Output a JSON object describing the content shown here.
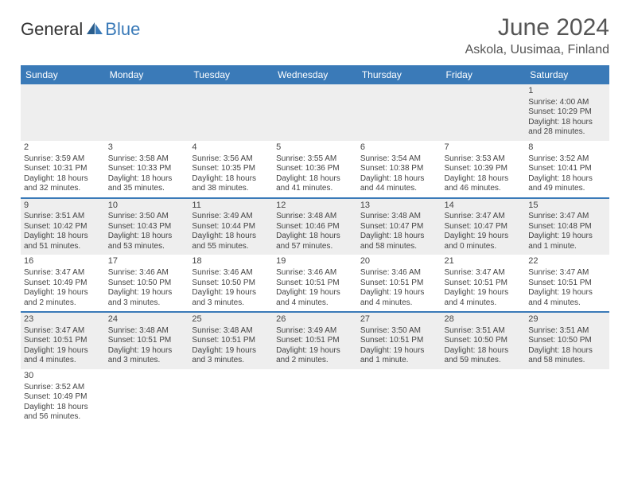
{
  "brand": {
    "part1": "General",
    "part2": "Blue"
  },
  "title": "June 2024",
  "location": "Askola, Uusimaa, Finland",
  "styling": {
    "header_bg": "#3a7ab8",
    "header_text_color": "#ffffff",
    "odd_row_bg": "#eeeeee",
    "even_row_bg": "#ffffff",
    "row_border_color": "#3a7ab8",
    "body_text_color": "#444444",
    "title_color": "#555555",
    "title_fontsize": 30,
    "location_fontsize": 16,
    "daynum_fontsize": 11,
    "cell_fontsize": 10,
    "header_fontsize": 12
  },
  "weekdays": [
    "Sunday",
    "Monday",
    "Tuesday",
    "Wednesday",
    "Thursday",
    "Friday",
    "Saturday"
  ],
  "weeks": [
    [
      null,
      null,
      null,
      null,
      null,
      null,
      {
        "n": "1",
        "sr": "Sunrise: 4:00 AM",
        "ss": "Sunset: 10:29 PM",
        "dl": "Daylight: 18 hours and 28 minutes."
      }
    ],
    [
      {
        "n": "2",
        "sr": "Sunrise: 3:59 AM",
        "ss": "Sunset: 10:31 PM",
        "dl": "Daylight: 18 hours and 32 minutes."
      },
      {
        "n": "3",
        "sr": "Sunrise: 3:58 AM",
        "ss": "Sunset: 10:33 PM",
        "dl": "Daylight: 18 hours and 35 minutes."
      },
      {
        "n": "4",
        "sr": "Sunrise: 3:56 AM",
        "ss": "Sunset: 10:35 PM",
        "dl": "Daylight: 18 hours and 38 minutes."
      },
      {
        "n": "5",
        "sr": "Sunrise: 3:55 AM",
        "ss": "Sunset: 10:36 PM",
        "dl": "Daylight: 18 hours and 41 minutes."
      },
      {
        "n": "6",
        "sr": "Sunrise: 3:54 AM",
        "ss": "Sunset: 10:38 PM",
        "dl": "Daylight: 18 hours and 44 minutes."
      },
      {
        "n": "7",
        "sr": "Sunrise: 3:53 AM",
        "ss": "Sunset: 10:39 PM",
        "dl": "Daylight: 18 hours and 46 minutes."
      },
      {
        "n": "8",
        "sr": "Sunrise: 3:52 AM",
        "ss": "Sunset: 10:41 PM",
        "dl": "Daylight: 18 hours and 49 minutes."
      }
    ],
    [
      {
        "n": "9",
        "sr": "Sunrise: 3:51 AM",
        "ss": "Sunset: 10:42 PM",
        "dl": "Daylight: 18 hours and 51 minutes."
      },
      {
        "n": "10",
        "sr": "Sunrise: 3:50 AM",
        "ss": "Sunset: 10:43 PM",
        "dl": "Daylight: 18 hours and 53 minutes."
      },
      {
        "n": "11",
        "sr": "Sunrise: 3:49 AM",
        "ss": "Sunset: 10:44 PM",
        "dl": "Daylight: 18 hours and 55 minutes."
      },
      {
        "n": "12",
        "sr": "Sunrise: 3:48 AM",
        "ss": "Sunset: 10:46 PM",
        "dl": "Daylight: 18 hours and 57 minutes."
      },
      {
        "n": "13",
        "sr": "Sunrise: 3:48 AM",
        "ss": "Sunset: 10:47 PM",
        "dl": "Daylight: 18 hours and 58 minutes."
      },
      {
        "n": "14",
        "sr": "Sunrise: 3:47 AM",
        "ss": "Sunset: 10:47 PM",
        "dl": "Daylight: 19 hours and 0 minutes."
      },
      {
        "n": "15",
        "sr": "Sunrise: 3:47 AM",
        "ss": "Sunset: 10:48 PM",
        "dl": "Daylight: 19 hours and 1 minute."
      }
    ],
    [
      {
        "n": "16",
        "sr": "Sunrise: 3:47 AM",
        "ss": "Sunset: 10:49 PM",
        "dl": "Daylight: 19 hours and 2 minutes."
      },
      {
        "n": "17",
        "sr": "Sunrise: 3:46 AM",
        "ss": "Sunset: 10:50 PM",
        "dl": "Daylight: 19 hours and 3 minutes."
      },
      {
        "n": "18",
        "sr": "Sunrise: 3:46 AM",
        "ss": "Sunset: 10:50 PM",
        "dl": "Daylight: 19 hours and 3 minutes."
      },
      {
        "n": "19",
        "sr": "Sunrise: 3:46 AM",
        "ss": "Sunset: 10:51 PM",
        "dl": "Daylight: 19 hours and 4 minutes."
      },
      {
        "n": "20",
        "sr": "Sunrise: 3:46 AM",
        "ss": "Sunset: 10:51 PM",
        "dl": "Daylight: 19 hours and 4 minutes."
      },
      {
        "n": "21",
        "sr": "Sunrise: 3:47 AM",
        "ss": "Sunset: 10:51 PM",
        "dl": "Daylight: 19 hours and 4 minutes."
      },
      {
        "n": "22",
        "sr": "Sunrise: 3:47 AM",
        "ss": "Sunset: 10:51 PM",
        "dl": "Daylight: 19 hours and 4 minutes."
      }
    ],
    [
      {
        "n": "23",
        "sr": "Sunrise: 3:47 AM",
        "ss": "Sunset: 10:51 PM",
        "dl": "Daylight: 19 hours and 4 minutes."
      },
      {
        "n": "24",
        "sr": "Sunrise: 3:48 AM",
        "ss": "Sunset: 10:51 PM",
        "dl": "Daylight: 19 hours and 3 minutes."
      },
      {
        "n": "25",
        "sr": "Sunrise: 3:48 AM",
        "ss": "Sunset: 10:51 PM",
        "dl": "Daylight: 19 hours and 3 minutes."
      },
      {
        "n": "26",
        "sr": "Sunrise: 3:49 AM",
        "ss": "Sunset: 10:51 PM",
        "dl": "Daylight: 19 hours and 2 minutes."
      },
      {
        "n": "27",
        "sr": "Sunrise: 3:50 AM",
        "ss": "Sunset: 10:51 PM",
        "dl": "Daylight: 19 hours and 1 minute."
      },
      {
        "n": "28",
        "sr": "Sunrise: 3:51 AM",
        "ss": "Sunset: 10:50 PM",
        "dl": "Daylight: 18 hours and 59 minutes."
      },
      {
        "n": "29",
        "sr": "Sunrise: 3:51 AM",
        "ss": "Sunset: 10:50 PM",
        "dl": "Daylight: 18 hours and 58 minutes."
      }
    ],
    [
      {
        "n": "30",
        "sr": "Sunrise: 3:52 AM",
        "ss": "Sunset: 10:49 PM",
        "dl": "Daylight: 18 hours and 56 minutes."
      },
      null,
      null,
      null,
      null,
      null,
      null
    ]
  ]
}
